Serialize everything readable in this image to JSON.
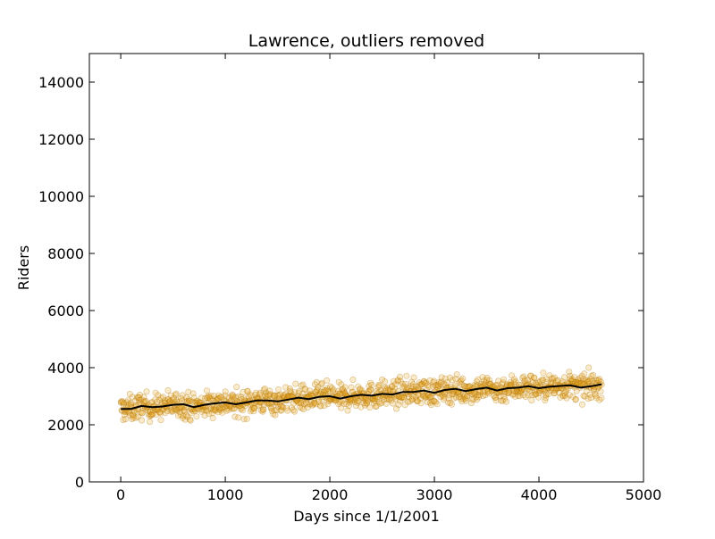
{
  "chart_data": {
    "type": "scatter",
    "title": "Lawrence, outliers removed",
    "xlabel": "Days since 1/1/2001",
    "ylabel": "Riders",
    "xlim": [
      -300,
      5000
    ],
    "ylim": [
      0,
      15000
    ],
    "xticks": [
      0,
      1000,
      2000,
      3000,
      4000,
      5000
    ],
    "yticks": [
      0,
      2000,
      4000,
      6000,
      8000,
      10000,
      12000,
      14000
    ],
    "xtick_labels": [
      "0",
      "1000",
      "2000",
      "3000",
      "4000",
      "5000"
    ],
    "ytick_labels": [
      "0",
      "2000",
      "4000",
      "6000",
      "8000",
      "10000",
      "12000",
      "14000"
    ],
    "grid": false,
    "colors": {
      "points": "#e8a317",
      "points_edge": "#b07000",
      "trend": "#000000"
    },
    "series": [
      {
        "type": "scatter",
        "x_range": [
          0,
          4600
        ],
        "approx_count": 1200,
        "value_range": [
          1900,
          4150
        ]
      },
      {
        "type": "line",
        "x": [
          0,
          100,
          200,
          300,
          400,
          500,
          600,
          700,
          800,
          900,
          1000,
          1100,
          1200,
          1300,
          1400,
          1500,
          1600,
          1700,
          1800,
          1900,
          2000,
          2100,
          2200,
          2300,
          2400,
          2500,
          2600,
          2700,
          2800,
          2900,
          3000,
          3100,
          3200,
          3300,
          3400,
          3500,
          3600,
          3700,
          3800,
          3900,
          4000,
          4100,
          4200,
          4300,
          4400,
          4500,
          4600
        ],
        "y": [
          2550,
          2560,
          2660,
          2620,
          2640,
          2700,
          2720,
          2620,
          2700,
          2750,
          2780,
          2720,
          2780,
          2850,
          2850,
          2820,
          2880,
          2950,
          2900,
          2980,
          3000,
          2920,
          3000,
          3050,
          3020,
          3080,
          3060,
          3150,
          3150,
          3200,
          3120,
          3220,
          3260,
          3180,
          3250,
          3300,
          3200,
          3280,
          3300,
          3350,
          3280,
          3330,
          3360,
          3380,
          3300,
          3350,
          3420
        ]
      }
    ]
  }
}
